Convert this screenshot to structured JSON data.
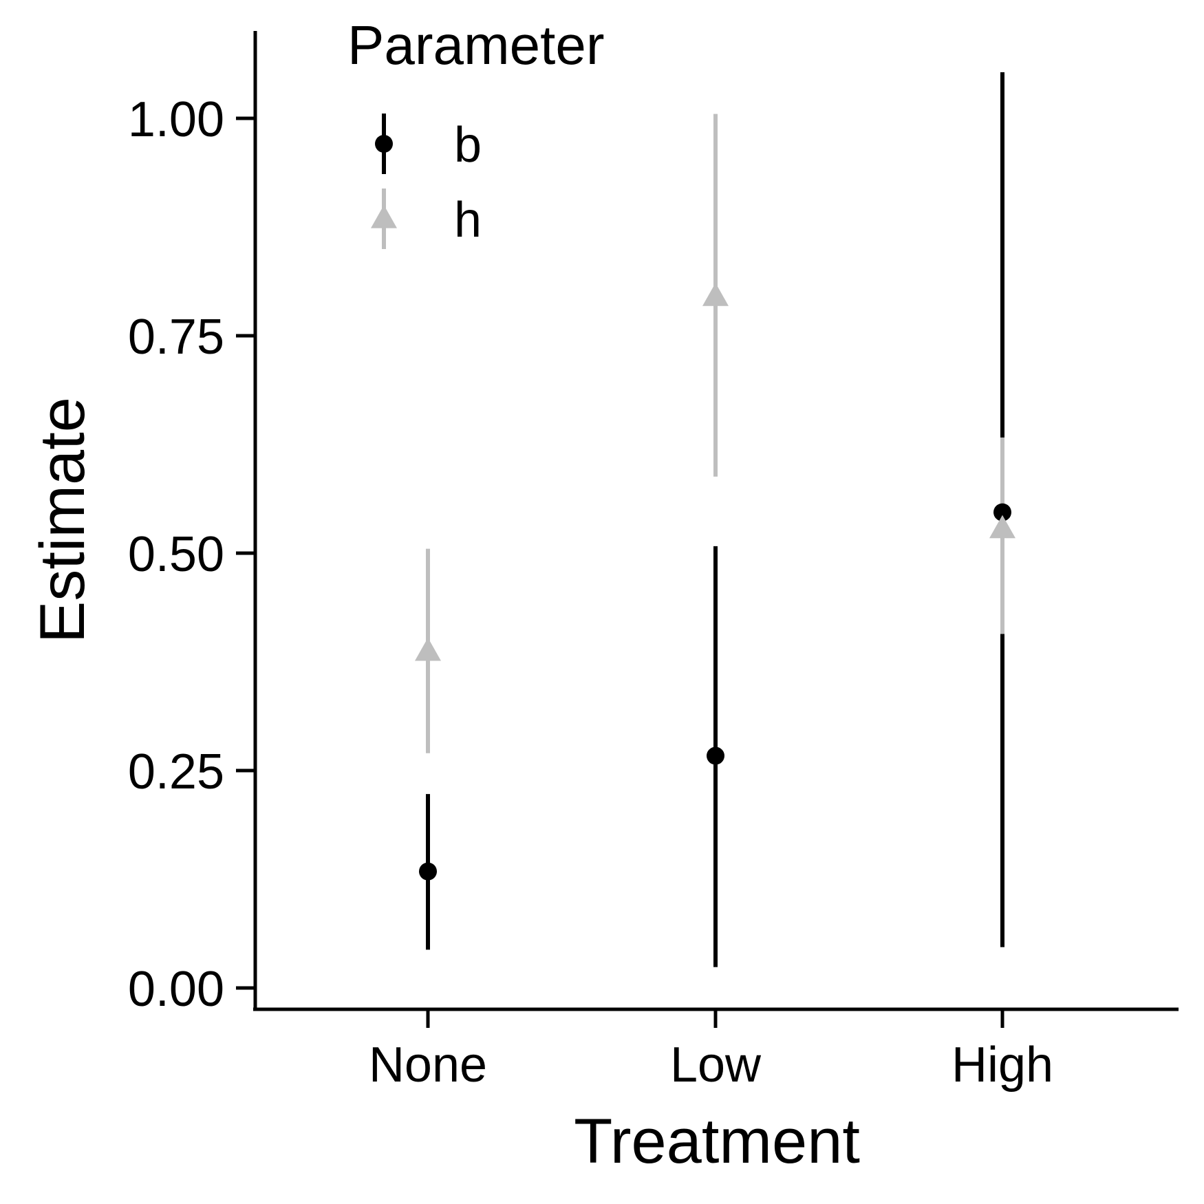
{
  "chart_data": {
    "type": "errorbar",
    "xlabel": "Treatment",
    "ylabel": "Estimate",
    "categories": [
      "None",
      "Low",
      "High"
    ],
    "ylim": [
      -0.025,
      1.1
    ],
    "yticks": [
      {
        "value": 0.0,
        "label": "0.00"
      },
      {
        "value": 0.25,
        "label": "0.25"
      },
      {
        "value": 0.5,
        "label": "0.50"
      },
      {
        "value": 0.75,
        "label": "0.75"
      },
      {
        "value": 1.0,
        "label": "1.00"
      }
    ],
    "legend": {
      "title": "Parameter",
      "position": "top-left-inside"
    },
    "series": [
      {
        "name": "b",
        "color": "#000000",
        "marker": "circle",
        "estimates": [
          0.134,
          0.267,
          0.547
        ],
        "lower": [
          0.044,
          0.024,
          0.047
        ],
        "upper": [
          0.223,
          0.508,
          1.053
        ]
      },
      {
        "name": "h",
        "color": "#bebebe",
        "marker": "triangle",
        "estimates": [
          0.387,
          0.795,
          0.528
        ],
        "lower": [
          0.27,
          0.588,
          0.407
        ],
        "upper": [
          0.505,
          1.005,
          0.633
        ]
      }
    ],
    "grid": false
  }
}
